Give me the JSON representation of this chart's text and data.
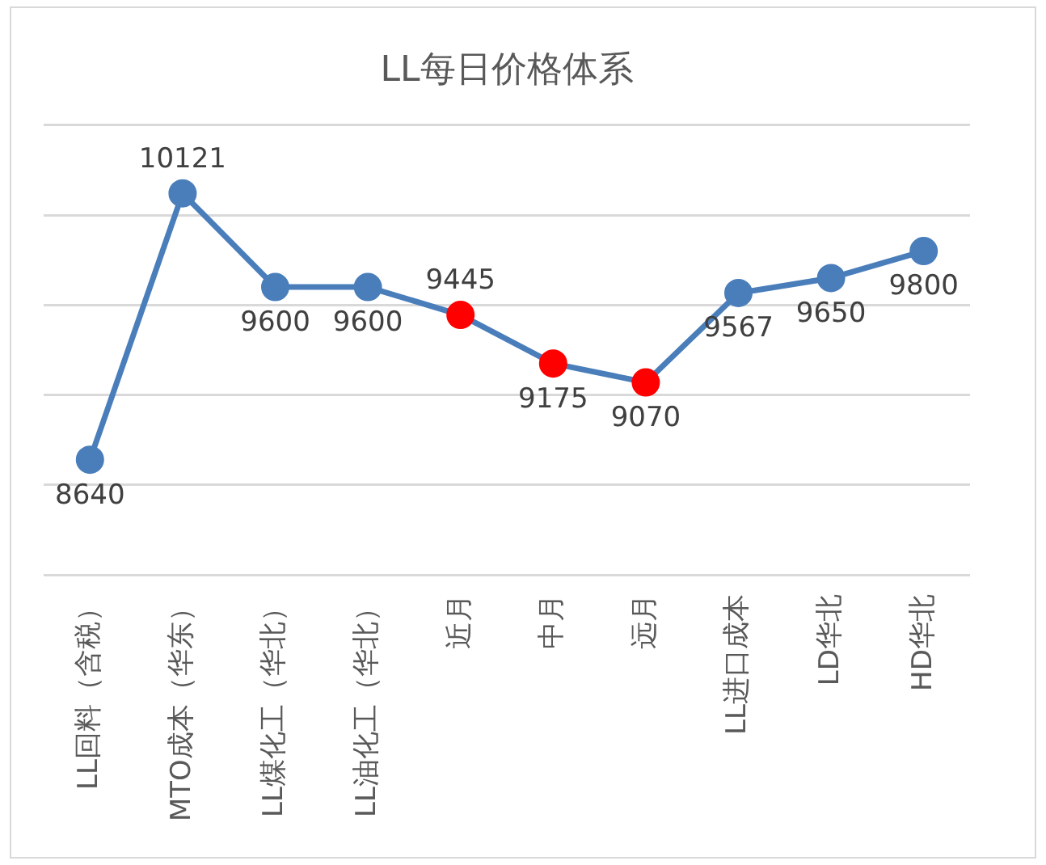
{
  "chart_data": {
    "type": "line",
    "title": "LL每日价格体系",
    "categories": [
      "LL回料（含税）",
      "MTO成本（华东）",
      "LL煤化工（华北）",
      "LL油化工（华北）",
      "近月",
      "中月",
      "远月",
      "LL进口成本",
      "LD华北",
      "HD华北"
    ],
    "values": [
      8640,
      10121,
      9600,
      9600,
      9445,
      9175,
      9070,
      9567,
      9650,
      9800
    ],
    "color": "#4a7ebb",
    "colors": [
      "#4a7ebb",
      "#4a7ebb",
      "#4a7ebb",
      "#4a7ebb",
      "#ff0000",
      "#ff0000",
      "#ff0000",
      "#4a7ebb",
      "#4a7ebb",
      "#4a7ebb"
    ],
    "ylim": [
      8000,
      10500
    ],
    "yticks": [
      {
        "value": 8000,
        "label": null
      },
      {
        "value": 8500,
        "label": null
      },
      {
        "value": 9000,
        "label": null
      },
      {
        "value": 9500,
        "label": null
      },
      {
        "value": 10000,
        "label": null
      },
      {
        "value": 10500,
        "label": null
      }
    ],
    "grid": "y",
    "tick_labels": "x",
    "marker": "circle",
    "line_style": "solid",
    "legend": false,
    "data_labels": true
  }
}
